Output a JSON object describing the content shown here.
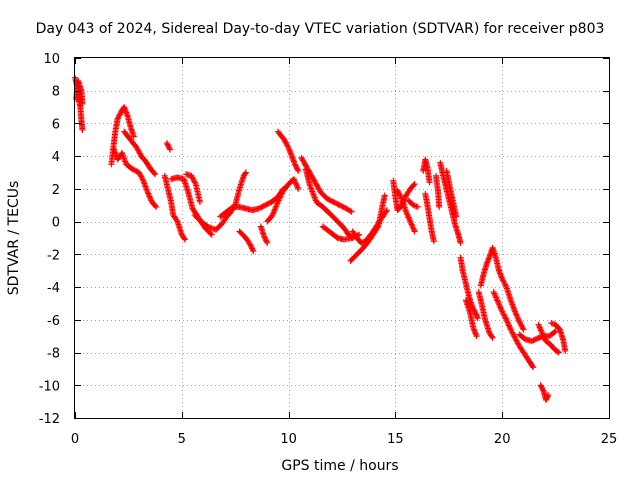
{
  "chart_data": {
    "type": "scatter",
    "title": "Day 043 of 2024, Sidereal Day-to-day VTEC variation (SDTVAR) for receiver p803",
    "xlabel": "GPS time / hours",
    "ylabel": "SDTVAR / TECUs",
    "xlim": [
      0,
      25
    ],
    "ylim": [
      -12,
      10
    ],
    "xticks": [
      0,
      5,
      10,
      15,
      20,
      25
    ],
    "yticks": [
      -12,
      -10,
      -8,
      -6,
      -4,
      -2,
      0,
      2,
      4,
      6,
      8,
      10
    ],
    "grid": true,
    "marker": "+",
    "color": "#ff0000",
    "series": [
      {
        "name": "SDTVAR p803",
        "segments": [
          [
            [
              0.0,
              8.8
            ],
            [
              0.1,
              8.3
            ],
            [
              0.15,
              7.6
            ],
            [
              0.25,
              7.0
            ],
            [
              0.3,
              6.2
            ],
            [
              0.35,
              5.6
            ]
          ],
          [
            [
              0.05,
              7.5
            ],
            [
              0.15,
              8.6
            ],
            [
              0.3,
              8.0
            ],
            [
              0.35,
              7.2
            ]
          ],
          [
            [
              1.7,
              3.5
            ],
            [
              1.8,
              4.6
            ],
            [
              1.9,
              5.6
            ],
            [
              2.0,
              6.3
            ],
            [
              2.2,
              6.8
            ],
            [
              2.3,
              7.0
            ],
            [
              2.45,
              6.5
            ],
            [
              2.6,
              5.8
            ],
            [
              2.75,
              5.2
            ]
          ],
          [
            [
              1.8,
              4.5
            ],
            [
              2.0,
              3.8
            ],
            [
              2.2,
              4.2
            ],
            [
              2.4,
              3.5
            ],
            [
              2.7,
              3.2
            ],
            [
              3.0,
              3.0
            ],
            [
              3.2,
              2.5
            ],
            [
              3.4,
              1.8
            ],
            [
              3.6,
              1.2
            ],
            [
              3.8,
              0.9
            ]
          ],
          [
            [
              2.3,
              5.5
            ],
            [
              2.6,
              5.0
            ],
            [
              2.9,
              4.5
            ],
            [
              3.1,
              4.0
            ],
            [
              3.3,
              3.7
            ],
            [
              3.55,
              3.2
            ],
            [
              3.75,
              2.9
            ]
          ],
          [
            [
              4.3,
              4.8
            ],
            [
              4.45,
              4.4
            ]
          ],
          [
            [
              4.2,
              2.8
            ],
            [
              4.35,
              2.0
            ],
            [
              4.5,
              1.2
            ],
            [
              4.6,
              0.4
            ],
            [
              4.8,
              0.0
            ],
            [
              5.0,
              -0.8
            ],
            [
              5.15,
              -1.1
            ]
          ],
          [
            [
              4.5,
              2.6
            ],
            [
              4.8,
              2.7
            ],
            [
              5.1,
              2.6
            ],
            [
              5.3,
              1.8
            ],
            [
              5.5,
              0.8
            ],
            [
              5.8,
              0.2
            ],
            [
              6.1,
              -0.4
            ],
            [
              6.4,
              -0.8
            ]
          ],
          [
            [
              5.2,
              2.9
            ],
            [
              5.45,
              2.8
            ],
            [
              5.65,
              2.3
            ],
            [
              5.85,
              1.2
            ]
          ],
          [
            [
              5.6,
              0.4
            ],
            [
              5.9,
              0.0
            ],
            [
              6.2,
              -0.3
            ],
            [
              6.6,
              -0.5
            ],
            [
              6.9,
              -0.1
            ],
            [
              7.1,
              0.3
            ],
            [
              7.3,
              0.6
            ],
            [
              7.5,
              1.0
            ],
            [
              7.7,
              2.0
            ],
            [
              7.9,
              2.8
            ],
            [
              8.0,
              3.0
            ]
          ],
          [
            [
              6.8,
              0.3
            ],
            [
              7.1,
              0.6
            ],
            [
              7.4,
              0.9
            ],
            [
              7.7,
              0.9
            ],
            [
              8.0,
              0.8
            ],
            [
              8.3,
              0.7
            ],
            [
              8.6,
              0.8
            ],
            [
              8.9,
              1.0
            ],
            [
              9.2,
              1.2
            ],
            [
              9.5,
              1.5
            ],
            [
              9.75,
              2.0
            ]
          ],
          [
            [
              7.7,
              -0.6
            ],
            [
              8.0,
              -1.0
            ],
            [
              8.2,
              -1.4
            ],
            [
              8.35,
              -1.8
            ]
          ],
          [
            [
              8.7,
              -0.3
            ],
            [
              8.85,
              -0.9
            ],
            [
              9.0,
              -1.3
            ]
          ],
          [
            [
              9.0,
              0.0
            ],
            [
              9.25,
              0.4
            ],
            [
              9.5,
              1.2
            ],
            [
              9.75,
              1.9
            ],
            [
              10.0,
              2.3
            ],
            [
              10.25,
              2.6
            ],
            [
              10.45,
              2.0
            ]
          ],
          [
            [
              9.5,
              5.5
            ],
            [
              9.8,
              5.0
            ],
            [
              10.0,
              4.5
            ],
            [
              10.15,
              4.0
            ],
            [
              10.3,
              3.5
            ],
            [
              10.45,
              3.1
            ]
          ],
          [
            [
              10.6,
              3.9
            ],
            [
              10.9,
              3.2
            ],
            [
              11.2,
              2.5
            ],
            [
              11.5,
              1.8
            ],
            [
              11.8,
              1.4
            ],
            [
              12.1,
              1.2
            ],
            [
              12.4,
              1.0
            ],
            [
              12.7,
              0.8
            ],
            [
              12.95,
              0.6
            ]
          ],
          [
            [
              10.8,
              3.2
            ],
            [
              11.0,
              2.2
            ],
            [
              11.3,
              1.2
            ],
            [
              11.6,
              0.9
            ],
            [
              12.0,
              0.4
            ],
            [
              12.3,
              0.0
            ],
            [
              12.6,
              -0.4
            ],
            [
              12.8,
              -0.8
            ],
            [
              13.0,
              -1.0
            ]
          ],
          [
            [
              11.6,
              -0.3
            ],
            [
              12.0,
              -0.7
            ],
            [
              12.3,
              -1.0
            ],
            [
              12.6,
              -1.1
            ],
            [
              12.95,
              -1.0
            ],
            [
              13.3,
              -0.8
            ]
          ],
          [
            [
              13.0,
              -0.6
            ],
            [
              13.2,
              -1.0
            ],
            [
              13.4,
              -1.3
            ],
            [
              13.6,
              -1.2
            ],
            [
              13.85,
              -0.8
            ],
            [
              14.05,
              -0.4
            ],
            [
              14.25,
              0.0
            ],
            [
              14.45,
              0.4
            ],
            [
              14.6,
              0.7
            ]
          ],
          [
            [
              12.9,
              -2.4
            ],
            [
              13.2,
              -2.0
            ],
            [
              13.5,
              -1.6
            ],
            [
              13.8,
              -1.1
            ],
            [
              14.0,
              -0.7
            ],
            [
              14.2,
              -0.3
            ],
            [
              14.4,
              1.0
            ],
            [
              14.5,
              1.6
            ]
          ],
          [
            [
              14.9,
              2.5
            ],
            [
              15.0,
              1.5
            ],
            [
              15.1,
              0.7
            ],
            [
              15.3,
              1.0
            ],
            [
              15.5,
              1.6
            ],
            [
              15.7,
              2.0
            ],
            [
              15.9,
              2.3
            ]
          ],
          [
            [
              15.1,
              1.9
            ],
            [
              15.3,
              1.4
            ],
            [
              15.5,
              0.6
            ],
            [
              15.7,
              0.0
            ],
            [
              15.9,
              -0.6
            ]
          ],
          [
            [
              15.6,
              1.3
            ],
            [
              15.85,
              1.0
            ],
            [
              16.05,
              0.9
            ]
          ],
          [
            [
              16.3,
              3.1
            ],
            [
              16.4,
              3.8
            ],
            [
              16.5,
              3.3
            ],
            [
              16.6,
              2.4
            ]
          ],
          [
            [
              16.4,
              1.7
            ],
            [
              16.5,
              1.0
            ],
            [
              16.6,
              0.2
            ],
            [
              16.7,
              -0.6
            ],
            [
              16.8,
              -1.2
            ]
          ],
          [
            [
              16.9,
              2.8
            ],
            [
              17.0,
              1.8
            ],
            [
              17.05,
              0.9
            ]
          ],
          [
            [
              17.1,
              3.6
            ],
            [
              17.2,
              3.0
            ],
            [
              17.35,
              2.2
            ],
            [
              17.5,
              1.4
            ],
            [
              17.65,
              0.6
            ],
            [
              17.8,
              -0.2
            ],
            [
              17.95,
              -0.8
            ],
            [
              18.05,
              -1.3
            ]
          ],
          [
            [
              17.4,
              3.1
            ],
            [
              17.55,
              2.1
            ],
            [
              17.7,
              1.2
            ],
            [
              17.85,
              0.3
            ]
          ],
          [
            [
              18.05,
              -2.2
            ],
            [
              18.15,
              -3.0
            ],
            [
              18.3,
              -3.8
            ],
            [
              18.45,
              -4.6
            ],
            [
              18.6,
              -5.2
            ],
            [
              18.75,
              -5.6
            ],
            [
              18.85,
              -5.9
            ]
          ],
          [
            [
              18.3,
              -4.8
            ],
            [
              18.5,
              -5.6
            ],
            [
              18.65,
              -6.5
            ],
            [
              18.8,
              -7.0
            ]
          ],
          [
            [
              18.9,
              -4.3
            ],
            [
              19.05,
              -5.1
            ],
            [
              19.2,
              -6.0
            ],
            [
              19.4,
              -6.8
            ],
            [
              19.55,
              -7.1
            ]
          ],
          [
            [
              19.0,
              -3.9
            ],
            [
              19.15,
              -3.1
            ],
            [
              19.3,
              -2.5
            ],
            [
              19.45,
              -2.0
            ],
            [
              19.55,
              -1.6
            ],
            [
              19.7,
              -2.2
            ],
            [
              19.85,
              -3.0
            ],
            [
              20.0,
              -3.5
            ],
            [
              20.2,
              -4.0
            ],
            [
              20.4,
              -4.8
            ],
            [
              20.6,
              -5.5
            ],
            [
              20.8,
              -6.1
            ],
            [
              21.0,
              -6.6
            ]
          ],
          [
            [
              19.6,
              -4.3
            ],
            [
              19.8,
              -4.9
            ],
            [
              20.0,
              -5.5
            ],
            [
              20.2,
              -6.0
            ],
            [
              20.4,
              -6.6
            ],
            [
              20.6,
              -7.1
            ],
            [
              20.8,
              -7.6
            ],
            [
              21.0,
              -8.0
            ],
            [
              21.2,
              -8.4
            ],
            [
              21.45,
              -8.9
            ]
          ],
          [
            [
              20.8,
              -6.9
            ],
            [
              21.1,
              -7.2
            ],
            [
              21.4,
              -7.3
            ],
            [
              21.7,
              -7.1
            ],
            [
              22.0,
              -7.0
            ],
            [
              22.2,
              -7.0
            ],
            [
              22.5,
              -6.7
            ]
          ],
          [
            [
              21.7,
              -6.3
            ],
            [
              21.9,
              -6.9
            ],
            [
              22.05,
              -7.3
            ],
            [
              22.25,
              -7.5
            ],
            [
              22.45,
              -7.8
            ],
            [
              22.65,
              -8.0
            ]
          ],
          [
            [
              21.8,
              -10.0
            ],
            [
              21.95,
              -10.4
            ],
            [
              22.05,
              -10.9
            ],
            [
              22.15,
              -10.6
            ]
          ],
          [
            [
              22.3,
              -6.2
            ],
            [
              22.5,
              -6.3
            ],
            [
              22.7,
              -6.6
            ],
            [
              22.85,
              -7.2
            ],
            [
              22.95,
              -7.9
            ]
          ]
        ]
      }
    ]
  }
}
